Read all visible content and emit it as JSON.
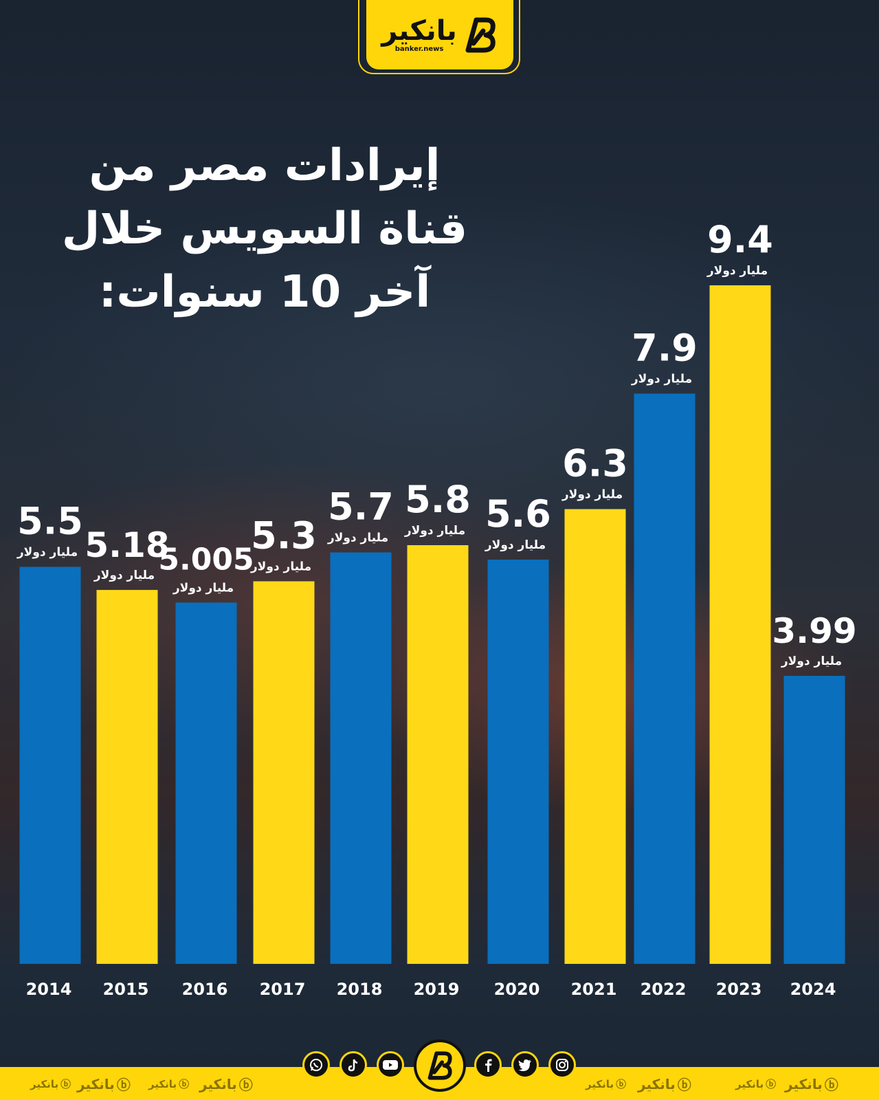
{
  "brand": {
    "name_ar": "بانكير",
    "domain": "banker.news"
  },
  "title_lines": [
    "إيرادات مصر من",
    "قناة السويس خلال",
    "آخر 10 سنوات:"
  ],
  "colors": {
    "blue": "#0a6fbd",
    "yellow": "#ffd918",
    "brand_yellow": "#ffd60a"
  },
  "chart_data": {
    "type": "bar",
    "title": "إيرادات مصر من قناة السويس خلال آخر 10 سنوات:",
    "categories": [
      "2014",
      "2015",
      "2016",
      "2017",
      "2018",
      "2019",
      "2020",
      "2021",
      "2022",
      "2023",
      "2024"
    ],
    "values": [
      5.5,
      5.18,
      5.005,
      5.3,
      5.7,
      5.8,
      5.6,
      6.3,
      7.9,
      9.4,
      3.99
    ],
    "value_labels": [
      "5.5",
      "5.18",
      "5.005",
      "5.3",
      "5.7",
      "5.8",
      "5.6",
      "6.3",
      "7.9",
      "9.4",
      "3.99"
    ],
    "bar_colors": [
      "blue",
      "yellow",
      "blue",
      "yellow",
      "blue",
      "yellow",
      "blue",
      "yellow",
      "blue",
      "yellow",
      "blue"
    ],
    "unit_label": "مليار دولار",
    "grid": false
  },
  "footer": {
    "social_icons": [
      "whatsapp-icon",
      "tiktok-icon",
      "youtube-icon",
      "facebook-icon",
      "twitter-icon",
      "instagram-icon"
    ]
  }
}
